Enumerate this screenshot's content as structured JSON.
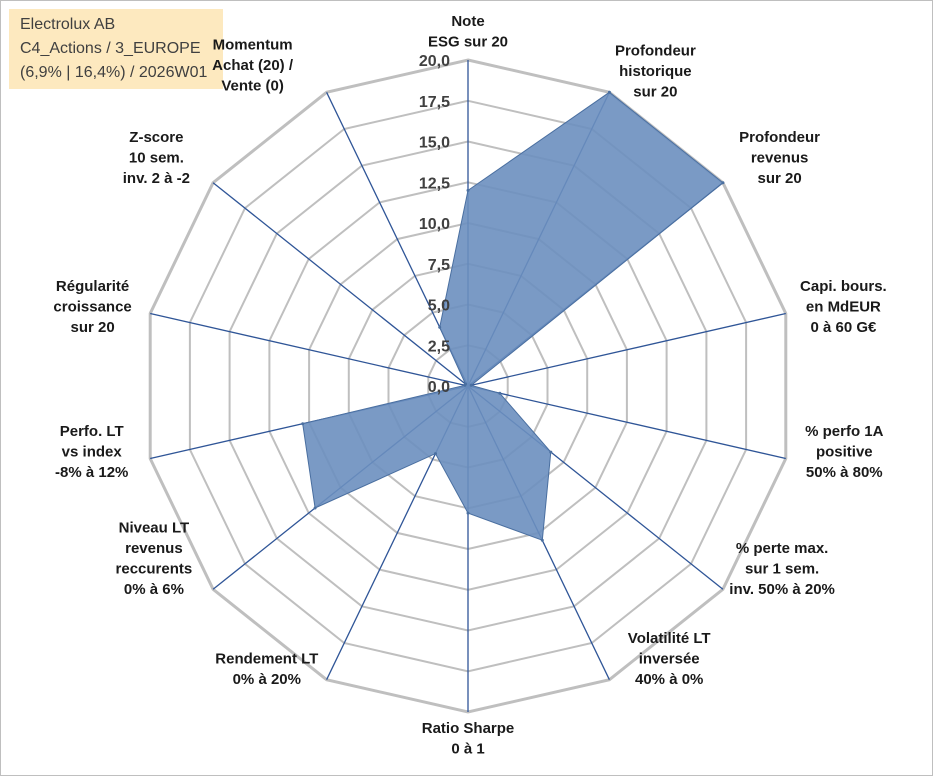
{
  "info": {
    "line1": "Electrolux AB",
    "line2": "C4_Actions / 3_EUROPE",
    "line3": "(6,9% | 16,4%) / 2026W01"
  },
  "chart_data": {
    "type": "radar",
    "rlim": [
      0,
      20
    ],
    "ticks": [
      "0,0",
      "2,5",
      "5,0",
      "7,5",
      "10,0",
      "12,5",
      "15,0",
      "17,5",
      "20,0"
    ],
    "axes": [
      [
        "Note",
        "ESG sur 20"
      ],
      [
        "Profondeur",
        "historique",
        "sur 20"
      ],
      [
        "Profondeur",
        "revenus",
        "sur 20"
      ],
      [
        "Capi. bours.",
        "en MdEUR",
        "0 à 60 G€"
      ],
      [
        "% perfo 1A",
        "positive",
        "50% à 80%"
      ],
      [
        "% perte max.",
        "sur 1 sem.",
        "inv. 50% à 20%"
      ],
      [
        "Volatilité LT",
        "inversée",
        "40% à 0%"
      ],
      [
        "Ratio Sharpe",
        "0 à 1"
      ],
      [
        "Rendement LT",
        "0% à 20%"
      ],
      [
        "Niveau LT",
        "revenus",
        "reccurents",
        "0% à 6%"
      ],
      [
        "Perfo. LT",
        "vs index",
        "-8% à 12%"
      ],
      [
        "Régularité",
        "croissance",
        "sur 20"
      ],
      [
        "Z-score",
        "10 sem.",
        "inv. 2 à -2"
      ],
      [
        "Momentum",
        "Achat (20) /",
        "Vente (0)"
      ]
    ],
    "series": [
      {
        "values": [
          12.0,
          20.0,
          20.0,
          0.2,
          2.0,
          6.5,
          10.5,
          7.8,
          4.6,
          12.0,
          10.4,
          0.2,
          0.2,
          4.0
        ]
      }
    ],
    "colors": {
      "fill": "#6b8fbf",
      "stroke": "#4a6fa0",
      "grid": "#bfbfbf",
      "spoke": "#2f5597"
    }
  }
}
